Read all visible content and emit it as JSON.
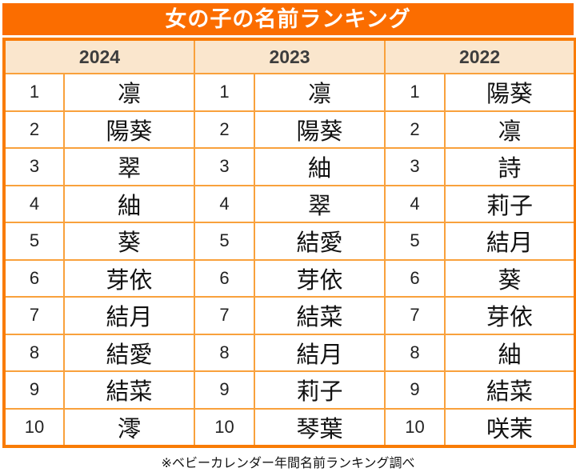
{
  "title": "女の子の名前ランキング",
  "source_note": "※ベビーカレンダー年間名前ランキング調べ",
  "years": [
    "2024",
    "2023",
    "2022"
  ],
  "colors": {
    "title_bg": "#fb6d00",
    "outer_border": "#f97c05",
    "inner_border": "#f9a13c",
    "header_bg": "#fae6cd",
    "header_text": "#3d3d3d",
    "title_text": "#ffffff",
    "cell_text": "#111111"
  },
  "chart_data": {
    "type": "table",
    "title": "女の子の名前ランキング",
    "columns": [
      "2024",
      "2023",
      "2022"
    ],
    "ranks": [
      1,
      2,
      3,
      4,
      5,
      6,
      7,
      8,
      9,
      10
    ],
    "series": [
      {
        "name": "2024",
        "values": [
          "凛",
          "陽葵",
          "翠",
          "紬",
          "葵",
          "芽依",
          "結月",
          "結愛",
          "結菜",
          "澪"
        ]
      },
      {
        "name": "2023",
        "values": [
          "凛",
          "陽葵",
          "紬",
          "翠",
          "結愛",
          "芽依",
          "結菜",
          "結月",
          "莉子",
          "琴葉"
        ]
      },
      {
        "name": "2022",
        "values": [
          "陽葵",
          "凛",
          "詩",
          "莉子",
          "結月",
          "葵",
          "芽依",
          "紬",
          "結菜",
          "咲茉"
        ]
      }
    ],
    "source": "※ベビーカレンダー年間名前ランキング調べ",
    "layout": "three year columns side by side, each with rank column and name column, 10 rows"
  }
}
